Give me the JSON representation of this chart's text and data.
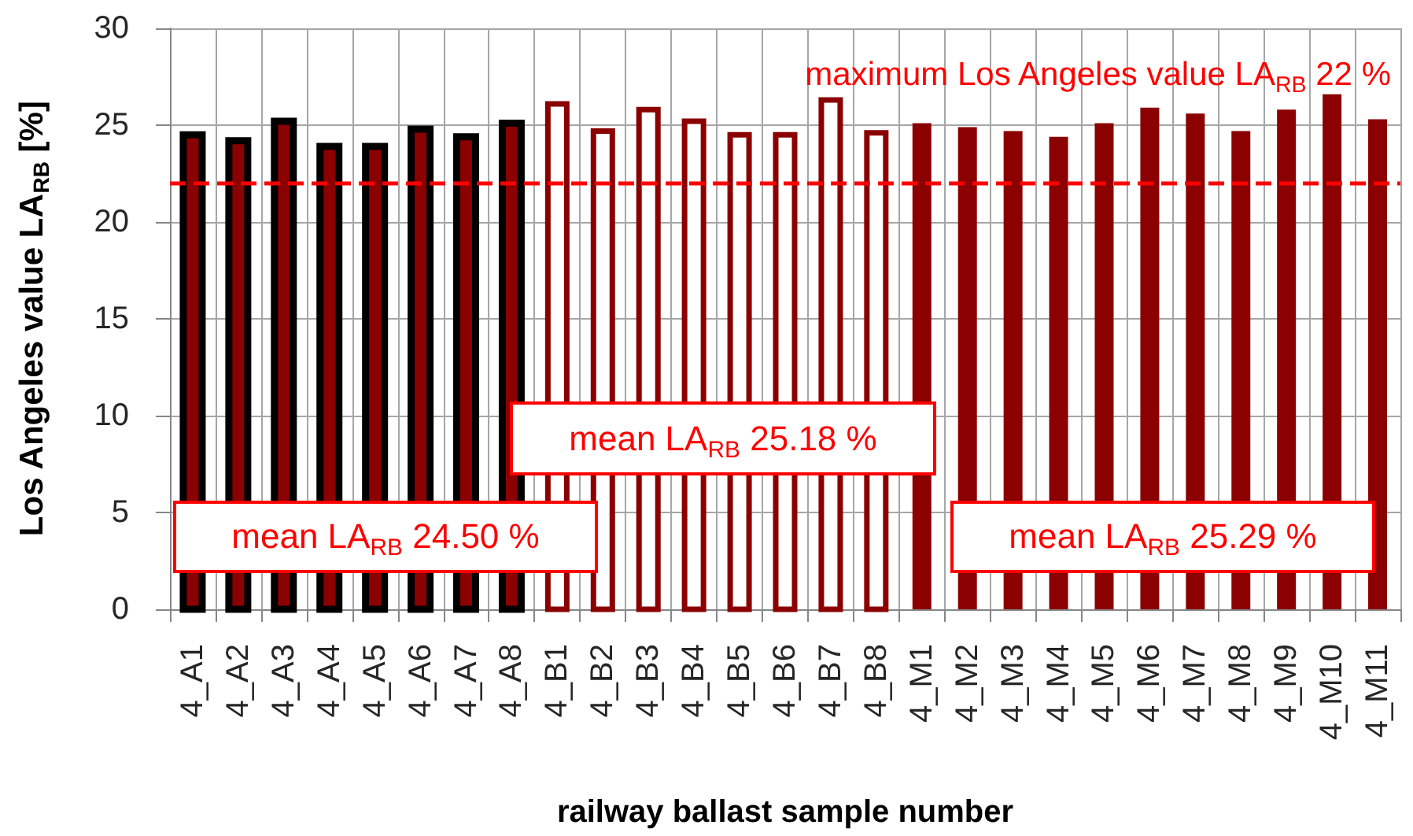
{
  "chart_data": {
    "type": "bar",
    "xlabel": "railway ballast sample number",
    "ylabel": "Los Angeles value LA$_{RB}$ [%]",
    "categories": [
      "4_A1",
      "4_A2",
      "4_A3",
      "4_A4",
      "4_A5",
      "4_A6",
      "4_A7",
      "4_A8",
      "4_B1",
      "4_B2",
      "4_B3",
      "4_B4",
      "4_B5",
      "4_B6",
      "4_B7",
      "4_B8",
      "4_M1",
      "4_M2",
      "4_M3",
      "4_M4",
      "4_M5",
      "4_M6",
      "4_M7",
      "4_M8",
      "4_M9",
      "4_M10",
      "4_M11"
    ],
    "series": [
      {
        "color": "#8b0000",
        "values": [
          24.5,
          24.2,
          25.2,
          23.9,
          23.9,
          24.8,
          24.4,
          25.1,
          null,
          null,
          null,
          null,
          null,
          null,
          null,
          null,
          null,
          null,
          null,
          null,
          null,
          null,
          null,
          null,
          null,
          null,
          null
        ]
      },
      {
        "color": "#8b0000",
        "values": [
          null,
          null,
          null,
          null,
          null,
          null,
          null,
          null,
          26.1,
          24.7,
          25.8,
          25.2,
          24.5,
          24.5,
          26.3,
          24.6,
          null,
          null,
          null,
          null,
          null,
          null,
          null,
          null,
          null,
          null,
          null
        ]
      },
      {
        "color": "#8b0000",
        "values": [
          null,
          null,
          null,
          null,
          null,
          null,
          null,
          null,
          null,
          null,
          null,
          null,
          null,
          null,
          null,
          null,
          25.1,
          24.9,
          24.7,
          24.4,
          25.1,
          25.9,
          25.6,
          24.7,
          25.8,
          26.6,
          25.3
        ]
      }
    ],
    "ylim": [
      0,
      30
    ],
    "yticks": [
      0,
      5,
      10,
      15,
      20,
      25,
      30
    ],
    "grid": true,
    "ref_lines": [
      {
        "axis": "y",
        "value": 22,
        "label": "maximum Los Angeles value LA$_{RB}$ 22 %",
        "color": "#ff0000",
        "line_style": "dashed"
      }
    ],
    "annotations": [
      "mean LA$_{RB}$ 24.50 %",
      "mean LA$_{RB}$ 25.18 %",
      "mean LA$_{RB}$ 25.29 %"
    ]
  }
}
